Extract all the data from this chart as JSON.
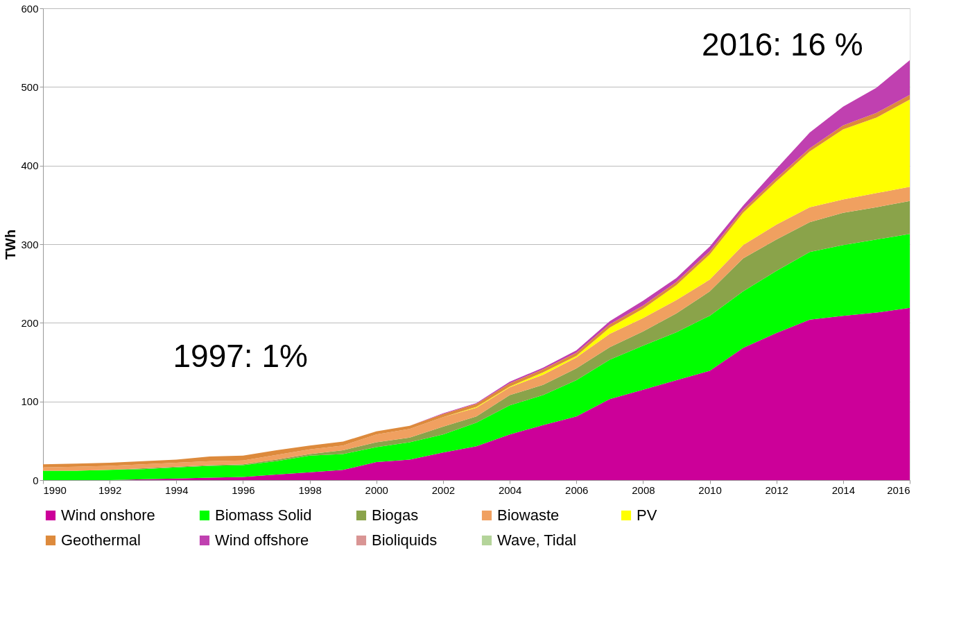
{
  "chart_data": {
    "type": "area",
    "stacked": true,
    "ylabel": "TWh",
    "x": [
      1990,
      1991,
      1992,
      1993,
      1994,
      1995,
      1996,
      1997,
      1998,
      1999,
      2000,
      2001,
      2002,
      2003,
      2004,
      2005,
      2006,
      2007,
      2008,
      2009,
      2010,
      2011,
      2012,
      2013,
      2014,
      2015,
      2016
    ],
    "series": [
      {
        "name": "Wind onshore",
        "color": "#cc0099",
        "values": [
          0,
          0,
          0,
          1,
          2,
          3,
          4,
          7,
          10,
          13,
          23,
          26,
          35,
          43,
          58,
          70,
          81,
          103,
          115,
          127,
          139,
          168,
          187,
          204,
          209,
          213,
          219
        ]
      },
      {
        "name": "Biomass Solid",
        "color": "#00ff00",
        "values": [
          12,
          12,
          13,
          13,
          14,
          15,
          15,
          17,
          21,
          20,
          19,
          22,
          23,
          30,
          37,
          38,
          46,
          50,
          56,
          61,
          70,
          72,
          79,
          86,
          90,
          93,
          94
        ]
      },
      {
        "name": "Biogas",
        "color": "#8aa34a",
        "values": [
          0,
          0,
          0,
          1,
          1,
          1,
          1,
          2,
          2,
          5,
          6,
          6,
          10,
          8,
          13,
          13,
          15,
          16,
          18,
          24,
          31,
          42,
          40,
          38,
          41,
          41,
          42
        ]
      },
      {
        "name": "Biowaste",
        "color": "#f0a060",
        "values": [
          4,
          5,
          5,
          5,
          5,
          5,
          5,
          6,
          6,
          6,
          10,
          11,
          12,
          11,
          10,
          13,
          14,
          17,
          17,
          17,
          15,
          17,
          19,
          19,
          17,
          18,
          18
        ]
      },
      {
        "name": "PV",
        "color": "#ffff00",
        "values": [
          0,
          0,
          0,
          0,
          0,
          0,
          0,
          0,
          0,
          0,
          0,
          0,
          0,
          1,
          1,
          3,
          2,
          8,
          12,
          19,
          32,
          41,
          55,
          71,
          89,
          96,
          111
        ]
      },
      {
        "name": "Geothermal",
        "color": "#dd8a3c",
        "values": [
          4,
          4,
          4,
          4,
          4,
          6,
          6,
          6,
          5,
          5,
          4,
          4,
          4,
          4,
          4,
          4,
          4,
          4,
          4,
          4,
          4,
          4,
          4,
          4,
          5,
          6,
          6
        ]
      },
      {
        "name": "Wind offshore",
        "color": "#c040b0",
        "values": [
          0,
          0,
          0,
          0,
          0,
          0,
          0,
          0,
          0,
          0,
          0,
          0,
          1,
          1,
          2,
          2,
          3,
          4,
          6,
          5,
          6,
          5,
          12,
          20,
          24,
          32,
          44
        ]
      },
      {
        "name": "Bioliquids",
        "color": "#d99594",
        "values": [
          null,
          null,
          null,
          null,
          null,
          null,
          null,
          null,
          null,
          null,
          null,
          null,
          null,
          null,
          null,
          null,
          null,
          null,
          null,
          null,
          null,
          null,
          null,
          null,
          null,
          null,
          null
        ]
      },
      {
        "name": "Wave, Tidal",
        "color": "#b4d49a",
        "values": [
          null,
          null,
          null,
          null,
          null,
          null,
          null,
          null,
          null,
          null,
          null,
          null,
          null,
          null,
          null,
          null,
          null,
          null,
          null,
          null,
          null,
          null,
          null,
          null,
          null,
          null,
          null
        ]
      }
    ],
    "xlim": [
      1990,
      2016
    ],
    "xticks": [
      1990,
      1992,
      1994,
      1996,
      1998,
      2000,
      2002,
      2004,
      2006,
      2008,
      2010,
      2012,
      2014,
      2016
    ],
    "ylim": [
      0,
      600
    ],
    "yticks": [
      0,
      100,
      200,
      300,
      400,
      500,
      600
    ],
    "grid": "y",
    "legend": "bottom",
    "annotations": [
      "1997: 1%",
      "2016: 16 %"
    ]
  }
}
